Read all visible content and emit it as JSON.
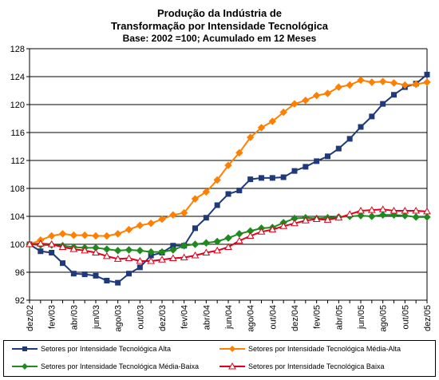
{
  "chart_data": {
    "type": "line",
    "title": "Produção da Indústria de",
    "title_line2": "Transformação por Intensidade Tecnológica",
    "subtitle": "Base: 2002 =100; Acumulado em 12 Meses",
    "ylim": [
      92,
      128
    ],
    "yticks": [
      92,
      96,
      100,
      104,
      108,
      112,
      116,
      120,
      124,
      128
    ],
    "grid": true,
    "legend_position": "bottom",
    "categories": [
      "dez/02",
      "jan/03",
      "fev/03",
      "mar/03",
      "abr/03",
      "mai/03",
      "jun/03",
      "jul/03",
      "ago/03",
      "set/03",
      "out/03",
      "nov/03",
      "dez/03",
      "jan/04",
      "fev/04",
      "mar/04",
      "abr/04",
      "mai/04",
      "jun/04",
      "jul/04",
      "ago/04",
      "set/04",
      "out/04",
      "nov/04",
      "dez/04",
      "jan/05",
      "fev/05",
      "mar/05",
      "abr/05",
      "mai/05",
      "jun/05",
      "jul/05",
      "ago/05",
      "set/05",
      "out/05",
      "nov/05",
      "dez/05"
    ],
    "tick_labels": [
      "dez/02",
      "fev/03",
      "abr/03",
      "jun/03",
      "ago/03",
      "out/03",
      "dez/03",
      "fev/04",
      "abr/04",
      "jun/04",
      "ago/04",
      "out/04",
      "dez/04",
      "fev/05",
      "abr/05",
      "jun/05",
      "ago/05",
      "out/05",
      "dez/05"
    ],
    "series": [
      {
        "name": "Setores por Intensidade Tecnológica Alta",
        "color": "#1f3a7a",
        "marker": "square",
        "values": [
          100.0,
          99.0,
          98.8,
          97.3,
          95.8,
          95.7,
          95.5,
          94.8,
          94.5,
          95.8,
          96.7,
          98.4,
          98.8,
          99.8,
          99.8,
          102.3,
          103.8,
          105.6,
          107.2,
          107.7,
          109.3,
          109.5,
          109.5,
          109.6,
          110.5,
          111.1,
          111.9,
          112.6,
          113.7,
          115.1,
          116.8,
          118.3,
          120.1,
          121.4,
          122.5,
          123.0,
          124.3
        ]
      },
      {
        "name": "Setores por Intensidade Tecnológica Média-Alta",
        "color": "#ff8000",
        "marker": "diamond",
        "values": [
          100.0,
          100.6,
          101.2,
          101.5,
          101.3,
          101.3,
          101.2,
          101.2,
          101.5,
          102.1,
          102.7,
          103.0,
          103.6,
          104.2,
          104.5,
          106.5,
          107.5,
          109.2,
          111.3,
          113.1,
          115.3,
          116.7,
          117.6,
          118.9,
          120.1,
          120.6,
          121.3,
          121.6,
          122.5,
          122.8,
          123.5,
          123.2,
          123.3,
          123.1,
          122.8,
          122.9,
          123.2
        ]
      },
      {
        "name": "Setores por Intensidade Tecnológica Média-Baixa",
        "color": "#1f8a1f",
        "marker": "diamond",
        "values": [
          100.0,
          99.9,
          99.9,
          99.8,
          99.6,
          99.5,
          99.5,
          99.3,
          99.1,
          99.2,
          99.1,
          98.9,
          98.9,
          99.2,
          99.8,
          100.0,
          100.2,
          100.4,
          100.9,
          101.5,
          101.9,
          102.3,
          102.4,
          103.1,
          103.7,
          103.8,
          103.7,
          103.8,
          103.9,
          104.0,
          104.1,
          104.0,
          104.2,
          104.2,
          104.1,
          103.9,
          103.9
        ]
      },
      {
        "name": "Setores por Intensidade Tecnológica Baixa",
        "color": "#e0001a",
        "marker": "triangle",
        "values": [
          100.0,
          100.1,
          100.0,
          99.6,
          99.3,
          99.1,
          98.8,
          98.3,
          97.9,
          98.0,
          97.6,
          97.6,
          97.8,
          98.0,
          98.1,
          98.4,
          98.8,
          99.1,
          99.6,
          100.5,
          101.2,
          101.8,
          102.1,
          102.6,
          103.0,
          103.4,
          103.6,
          103.5,
          103.8,
          104.3,
          104.8,
          104.9,
          105.0,
          104.8,
          104.8,
          104.8,
          104.7
        ]
      }
    ]
  }
}
